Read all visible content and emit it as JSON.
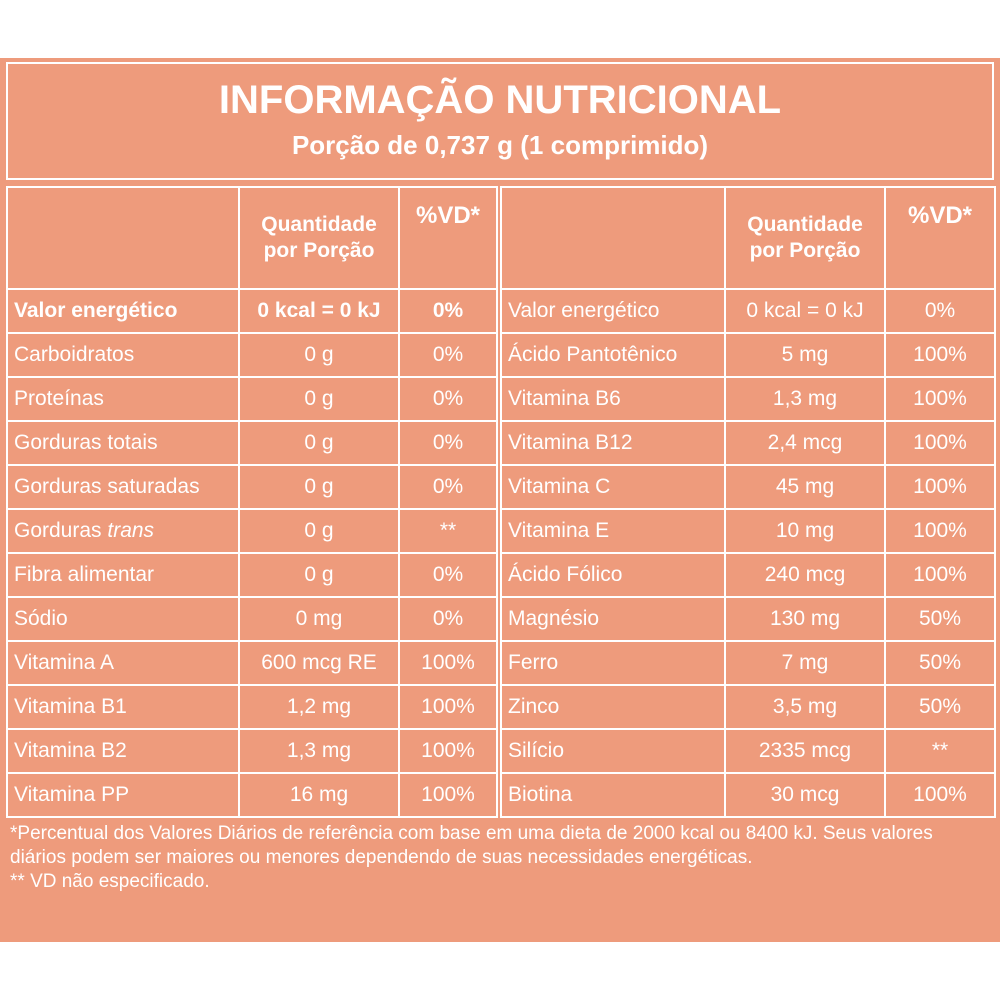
{
  "header": {
    "title": "INFORMAÇÃO NUTRICIONAL",
    "subtitle": "Porção de 0,737 g (1 comprimido)"
  },
  "columns": {
    "quantity": "Quantidade por Porção",
    "vd": "%VD*"
  },
  "left_rows": [
    {
      "name": "Valor energético",
      "qty": "0 kcal = 0 kJ",
      "vd": "0%"
    },
    {
      "name": "Carboidratos",
      "qty": "0 g",
      "vd": "0%"
    },
    {
      "name": "Proteínas",
      "qty": "0 g",
      "vd": "0%"
    },
    {
      "name": "Gorduras totais",
      "qty": "0 g",
      "vd": "0%"
    },
    {
      "name": "Gorduras saturadas",
      "qty": "0 g",
      "vd": "0%"
    },
    {
      "name": "Gorduras trans",
      "qty": "0 g",
      "vd": "**"
    },
    {
      "name": "Fibra alimentar",
      "qty": "0 g",
      "vd": "0%"
    },
    {
      "name": "Sódio",
      "qty": "0 mg",
      "vd": "0%"
    },
    {
      "name": "Vitamina A",
      "qty": "600 mcg RE",
      "vd": "100%"
    },
    {
      "name": "Vitamina B1",
      "qty": "1,2 mg",
      "vd": "100%"
    },
    {
      "name": "Vitamina B2",
      "qty": "1,3 mg",
      "vd": "100%"
    },
    {
      "name": "Vitamina PP",
      "qty": "16 mg",
      "vd": "100%"
    }
  ],
  "right_rows": [
    {
      "name": "Valor energético",
      "qty": "0 kcal = 0 kJ",
      "vd": "0%"
    },
    {
      "name": "Ácido Pantotênico",
      "qty": "5 mg",
      "vd": "100%"
    },
    {
      "name": "Vitamina B6",
      "qty": "1,3 mg",
      "vd": "100%"
    },
    {
      "name": "Vitamina B12",
      "qty": "2,4 mcg",
      "vd": "100%"
    },
    {
      "name": "Vitamina C",
      "qty": "45 mg",
      "vd": "100%"
    },
    {
      "name": "Vitamina E",
      "qty": "10 mg",
      "vd": "100%"
    },
    {
      "name": "Ácido Fólico",
      "qty": "240 mcg",
      "vd": "100%"
    },
    {
      "name": "Magnésio",
      "qty": "130 mg",
      "vd": "50%"
    },
    {
      "name": "Ferro",
      "qty": "7 mg",
      "vd": "50%"
    },
    {
      "name": "Zinco",
      "qty": "3,5 mg",
      "vd": "50%"
    },
    {
      "name": "Silício",
      "qty": "2335 mcg",
      "vd": "**"
    },
    {
      "name": "Biotina",
      "qty": "30 mcg",
      "vd": "100%"
    }
  ],
  "footnotes": {
    "note1": "*Percentual dos Valores Diários de referência com base em uma dieta de 2000 kcal ou 8400 kJ. Seus valores diários podem ser maiores ou menores dependendo de suas necessidades energéticas.",
    "note2": "** VD não especificado."
  },
  "colors": {
    "background": "#ee9b7c",
    "text": "#ffffff"
  }
}
